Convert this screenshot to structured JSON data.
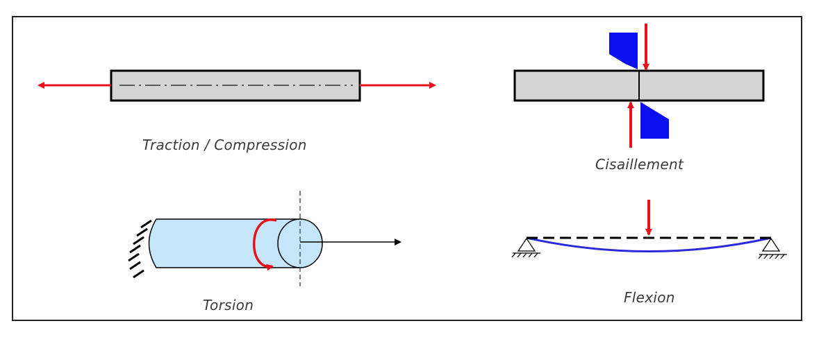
{
  "panels": {
    "traction": {
      "caption": "Traction / Compression"
    },
    "shear": {
      "caption": "Cisaillement"
    },
    "torsion": {
      "caption": "Torsion"
    },
    "flexion": {
      "caption": "Flexion"
    }
  },
  "colors": {
    "force_arrow": "#e8101a",
    "bar_fill": "#d4d4d4",
    "outline": "#000000",
    "blade": "#0a10ee",
    "cylinder_fill": "#c4e6f8",
    "deflected_beam": "#2a2ad8",
    "caption_text": "#3a3a3a"
  }
}
